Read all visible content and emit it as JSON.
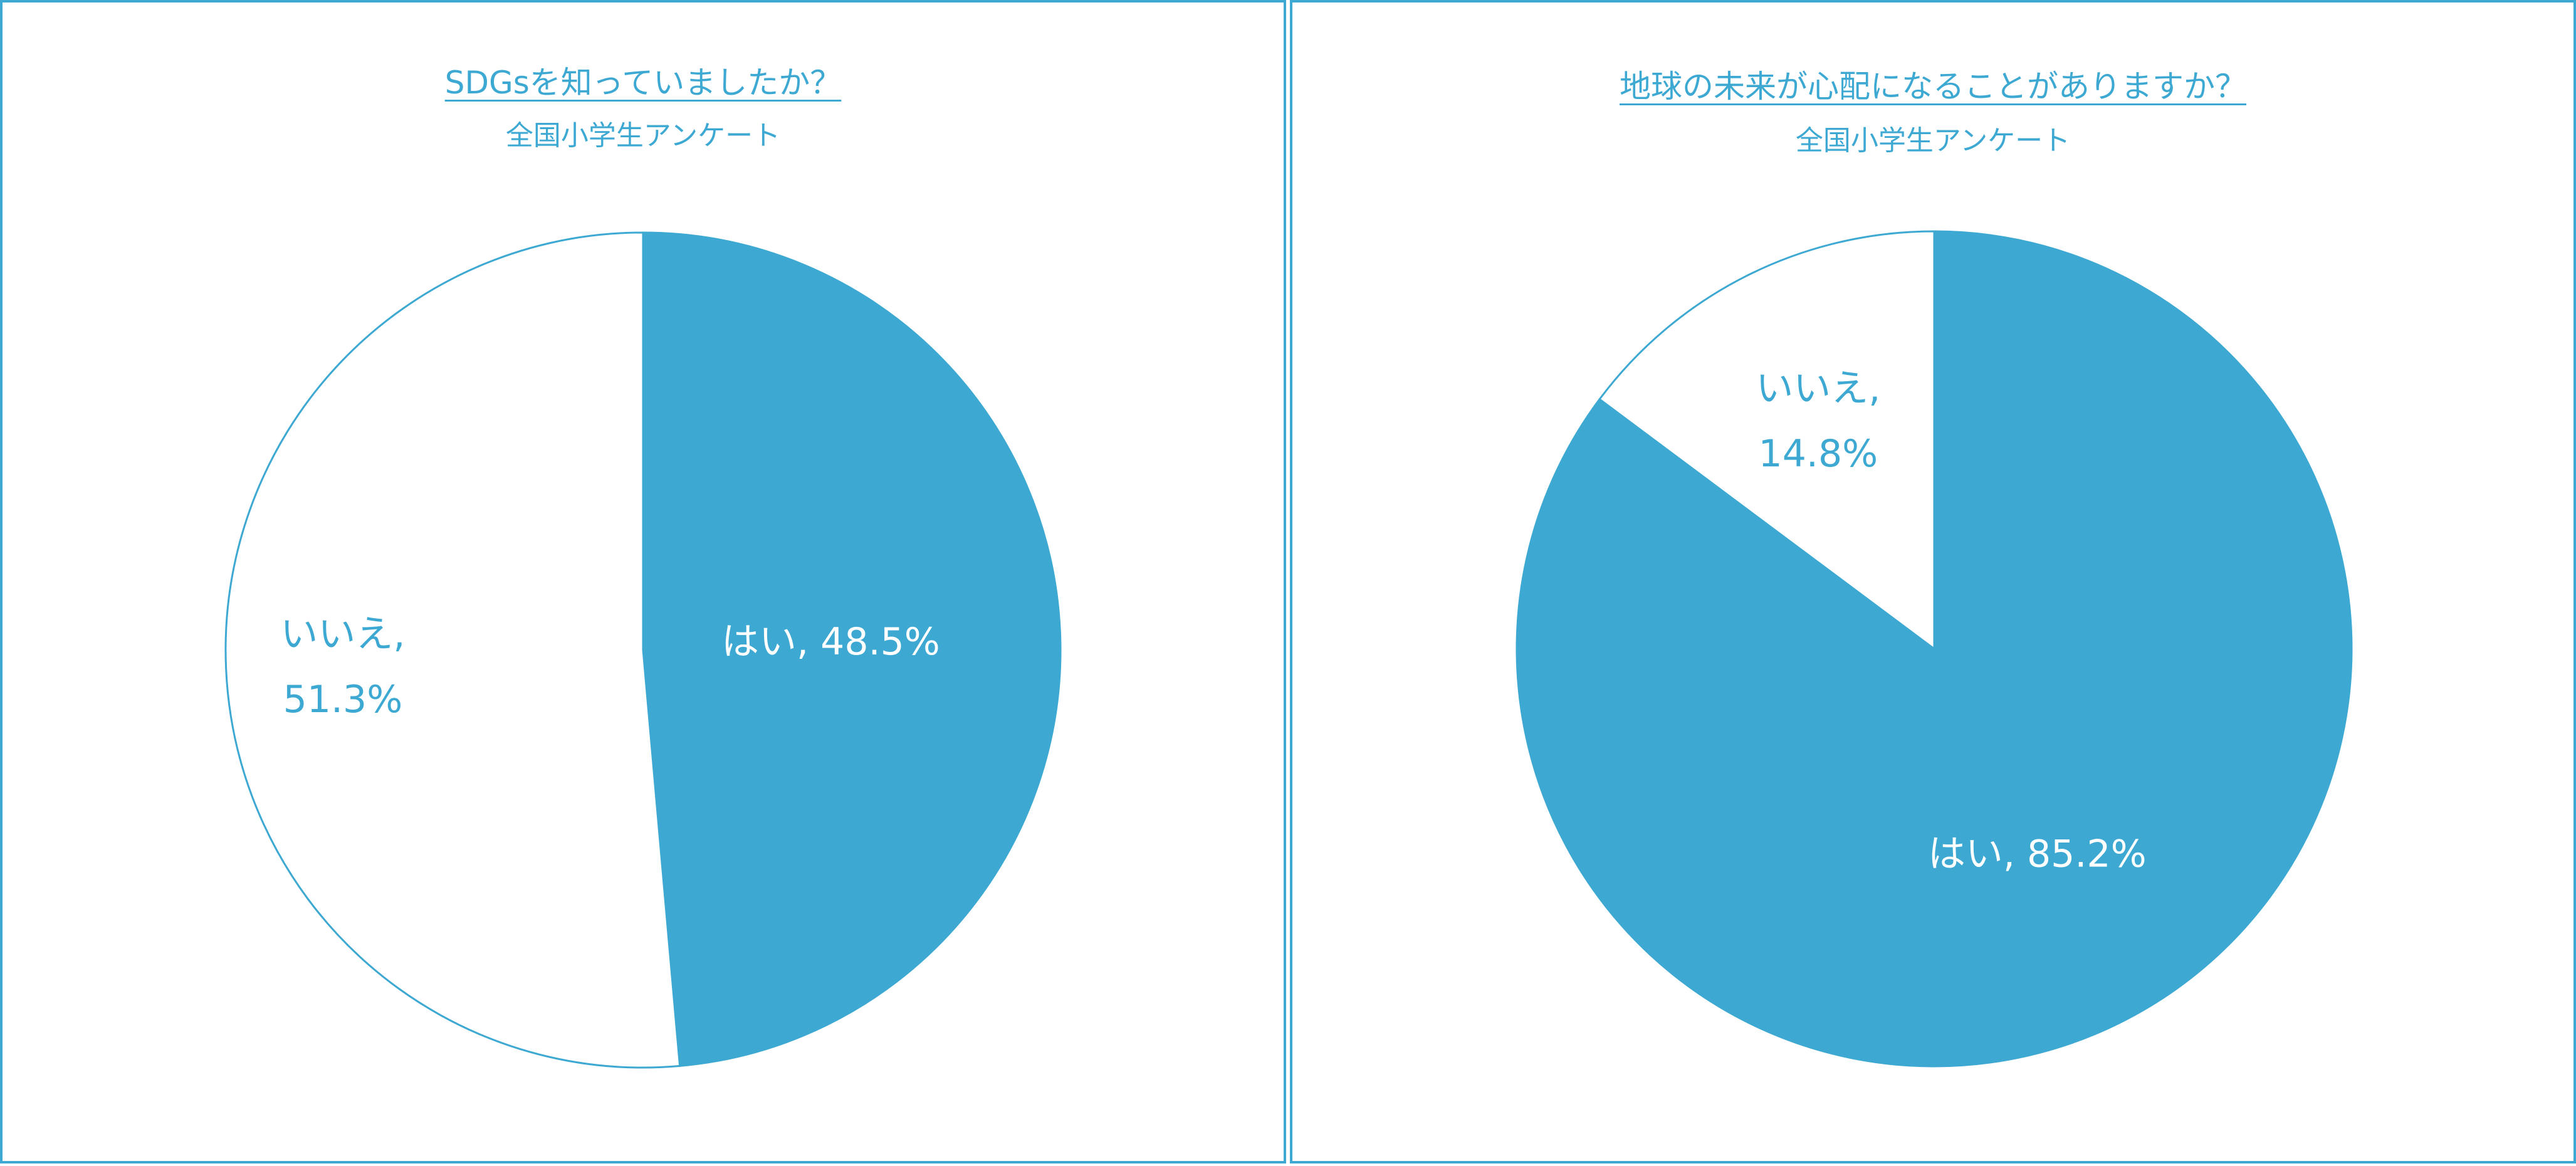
{
  "colors": {
    "accent": "#3da9d3",
    "background": "#ffffff",
    "label_on_fill": "#ffffff"
  },
  "chart_data": [
    {
      "type": "pie",
      "title": "SDGsを知っていましたか？",
      "subtitle": "全国小学生アンケート",
      "slices": [
        {
          "label": "はい",
          "value": 48.5,
          "display": "はい, 48.5%",
          "fill": "#3da9d3"
        },
        {
          "label": "いいえ",
          "value": 51.3,
          "display_line1": "いいえ,",
          "display_line2": "51.3%",
          "fill": "#ffffff"
        }
      ]
    },
    {
      "type": "pie",
      "title": "地球の未来が心配になることがありますか？",
      "subtitle": "全国小学生アンケート",
      "slices": [
        {
          "label": "はい",
          "value": 85.2,
          "display": "はい, 85.2%",
          "fill": "#3da9d3"
        },
        {
          "label": "いいえ",
          "value": 14.8,
          "display_line1": "いいえ,",
          "display_line2": "14.8%",
          "fill": "#ffffff"
        }
      ]
    }
  ]
}
